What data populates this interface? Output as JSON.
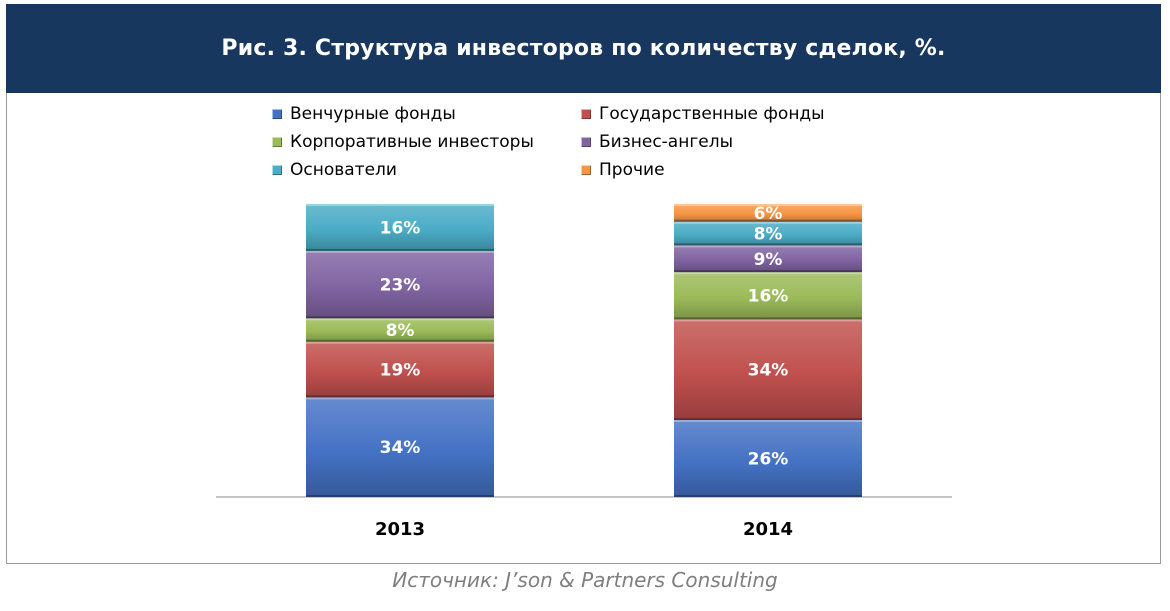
{
  "title": "Рис. 3. Структура инвесторов по количеству сделок, %.",
  "source": "Источник: J’son & Partners Consulting",
  "chart_data": {
    "type": "bar",
    "stacked": true,
    "categories": [
      "2013",
      "2014"
    ],
    "series": [
      {
        "name": "Венчурные фонды",
        "values": [
          34,
          26
        ],
        "labels": [
          "34%",
          "26%"
        ],
        "color": "#4472c4"
      },
      {
        "name": "Государственные фонды",
        "values": [
          19,
          34
        ],
        "labels": [
          "19%",
          "34%"
        ],
        "color": "#c0504d"
      },
      {
        "name": "Корпоративные инвесторы",
        "values": [
          8,
          16
        ],
        "labels": [
          "8%",
          "16%"
        ],
        "color": "#9bbb59"
      },
      {
        "name": "Бизнес-ангелы",
        "values": [
          23,
          9
        ],
        "labels": [
          "23%",
          "9%"
        ],
        "color": "#8064a2"
      },
      {
        "name": "Основатели",
        "values": [
          16,
          8
        ],
        "labels": [
          "16%",
          "8%"
        ],
        "color": "#4bacc6"
      },
      {
        "name": "Прочие",
        "values": [
          0,
          6
        ],
        "labels": [
          "",
          "6%"
        ],
        "color": "#f79646"
      }
    ],
    "legend_position": "top",
    "grid": false
  }
}
